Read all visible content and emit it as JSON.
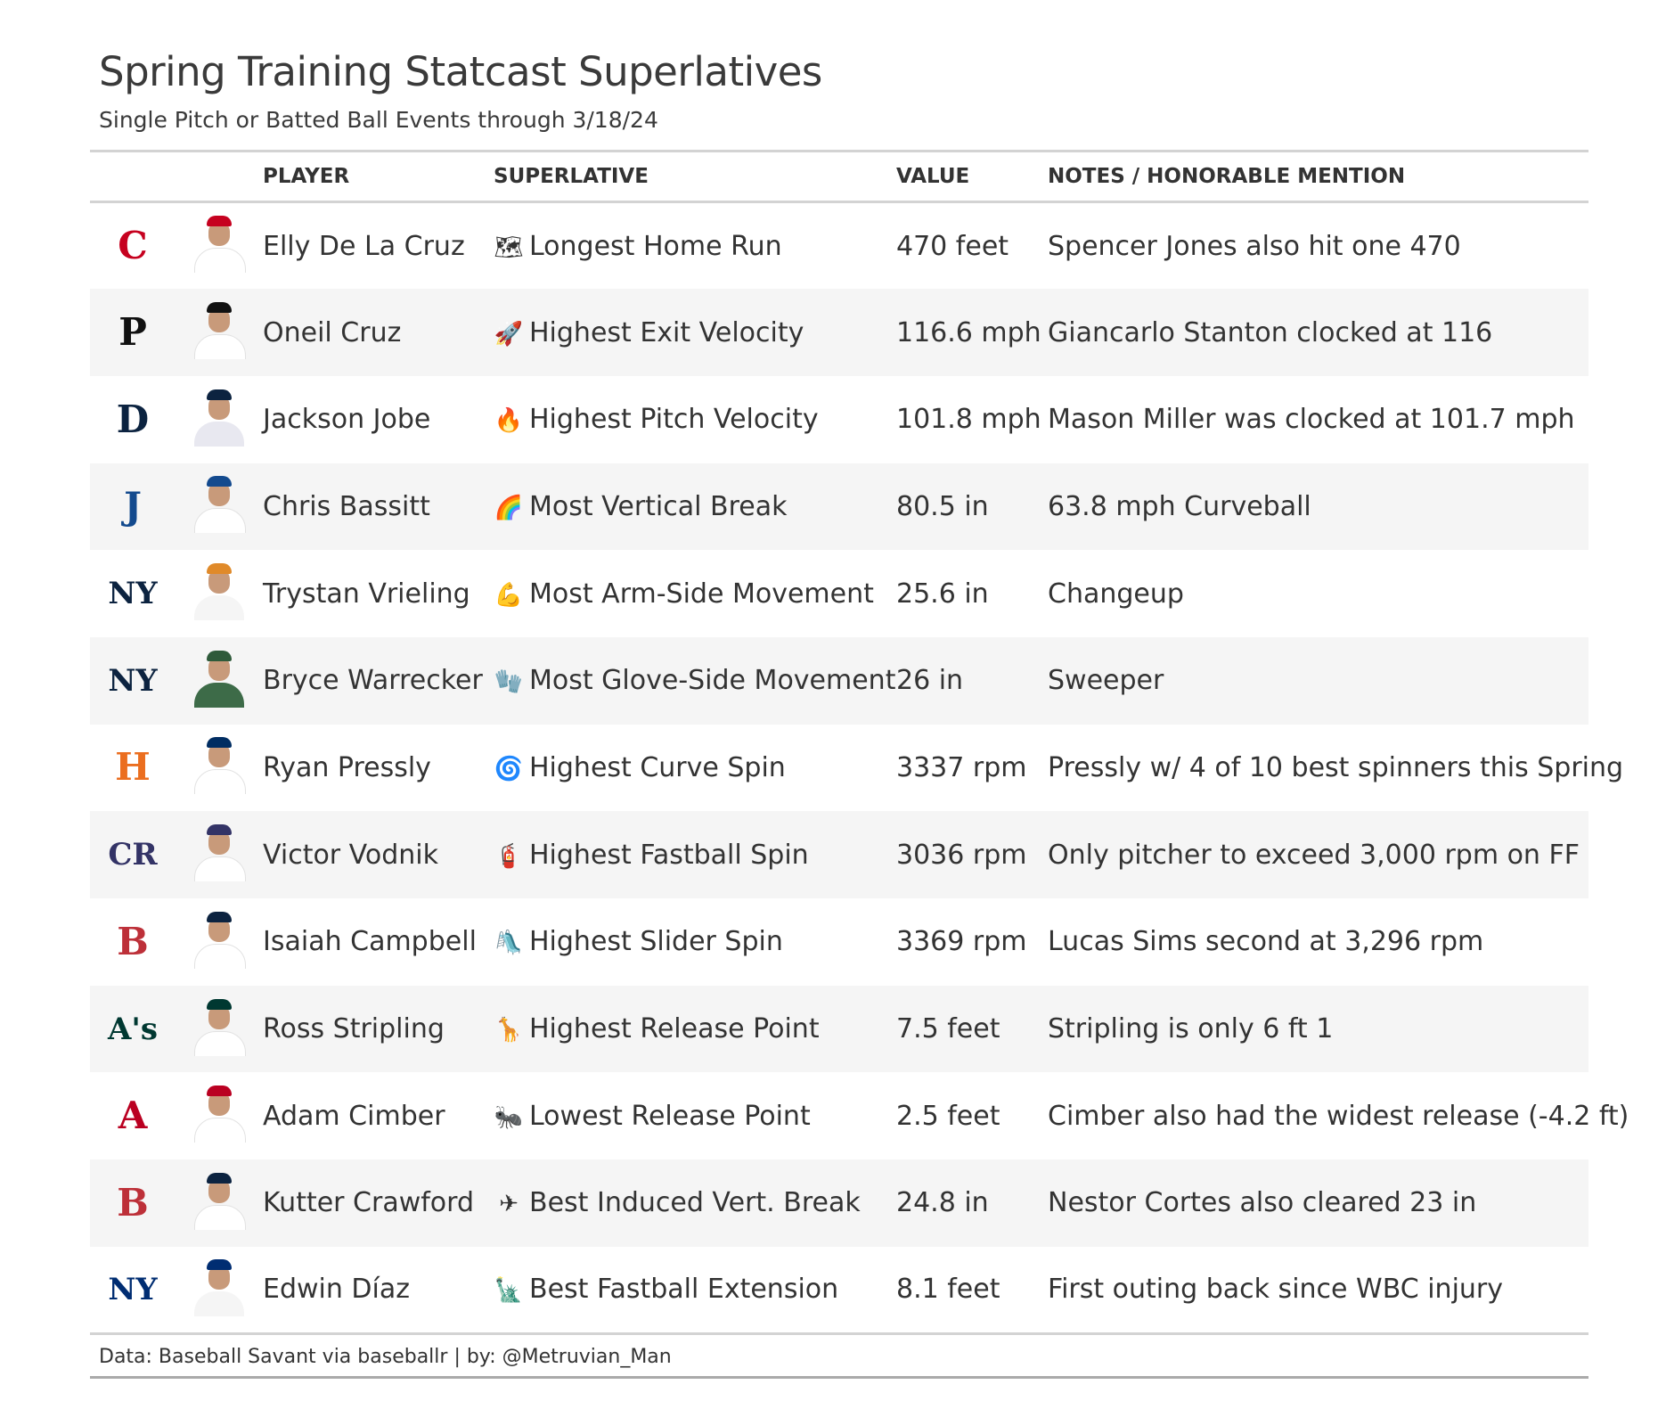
{
  "title": "Spring Training Statcast Superlatives",
  "subtitle": "Single Pitch or Batted Ball Events through 3/18/24",
  "columns": {
    "player": "PLAYER",
    "superlative": "SUPERLATIVE",
    "value": "VALUE",
    "notes": "NOTES / HONORABLE MENTION"
  },
  "rows": [
    {
      "team": "Reds",
      "logo_text": "C",
      "logo_color": "#c6011f",
      "cap_color": "#c6011f",
      "jersey_color": "#ffffff",
      "player": "Elly De La Cruz",
      "icon": "map-icon",
      "icon_glyph": "🗺",
      "superlative": "Longest Home Run",
      "value": "470 feet",
      "notes": "Spencer Jones also hit one 470"
    },
    {
      "team": "Pirates",
      "logo_text": "P",
      "logo_color": "#111111",
      "cap_color": "#111111",
      "jersey_color": "#ffffff",
      "player": "Oneil Cruz",
      "icon": "rocket-icon",
      "icon_glyph": "🚀",
      "superlative": "Highest Exit Velocity",
      "value": "116.6 mph",
      "notes": "Giancarlo Stanton clocked at 116"
    },
    {
      "team": "Tigers",
      "logo_text": "D",
      "logo_color": "#0c2340",
      "cap_color": "#0c2340",
      "jersey_color": "#e8e8f0",
      "player": "Jackson Jobe",
      "icon": "fire-icon",
      "icon_glyph": "🔥",
      "superlative": "Highest Pitch Velocity",
      "value": "101.8 mph",
      "notes": "Mason Miller was clocked at 101.7 mph"
    },
    {
      "team": "Blue Jays",
      "logo_text": "J",
      "logo_color": "#134a8e",
      "cap_color": "#134a8e",
      "jersey_color": "#ffffff",
      "player": "Chris Bassitt",
      "icon": "rainbow-icon",
      "icon_glyph": "🌈",
      "superlative": "Most Vertical Break",
      "value": "80.5 in",
      "notes": "63.8 mph Curveball"
    },
    {
      "team": "Yankees",
      "logo_text": "NY",
      "logo_color": "#0c2340",
      "cap_color": "#e08a2a",
      "jersey_color": "#f5f5f5",
      "player": "Trystan Vrieling",
      "icon": "flexed-bicep-icon",
      "icon_glyph": "💪",
      "superlative": "Most Arm-Side Movement",
      "value": "25.6 in",
      "notes": "Changeup"
    },
    {
      "team": "Yankees",
      "logo_text": "NY",
      "logo_color": "#0c2340",
      "cap_color": "#2e5a3a",
      "jersey_color": "#3d6b48",
      "player": "Bryce Warrecker",
      "icon": "glove-icon",
      "icon_glyph": "🧤",
      "superlative": "Most Glove-Side Movement",
      "value": "26 in",
      "notes": "Sweeper"
    },
    {
      "team": "Astros",
      "logo_text": "H",
      "logo_color": "#eb6e1f",
      "cap_color": "#002d62",
      "jersey_color": "#ffffff",
      "player": "Ryan Pressly",
      "icon": "cyclone-icon",
      "icon_glyph": "🌀",
      "superlative": "Highest Curve Spin",
      "value": "3337 rpm",
      "notes": "Pressly w/ 4 of 10 best spinners this Spring"
    },
    {
      "team": "Rockies",
      "logo_text": "CR",
      "logo_color": "#333366",
      "cap_color": "#333366",
      "jersey_color": "#ffffff",
      "player": "Victor Vodnik",
      "icon": "fire-extinguisher-icon",
      "icon_glyph": "🧯",
      "superlative": "Highest Fastball Spin",
      "value": "3036 rpm",
      "notes": "Only pitcher to exceed 3,000 rpm on FF"
    },
    {
      "team": "Red Sox",
      "logo_text": "B",
      "logo_color": "#bd3039",
      "cap_color": "#0c2340",
      "jersey_color": "#ffffff",
      "player": "Isaiah Campbell",
      "icon": "slide-icon",
      "icon_glyph": "🛝",
      "superlative": "Highest Slider Spin",
      "value": "3369 rpm",
      "notes": "Lucas Sims second at 3,296 rpm"
    },
    {
      "team": "Athletics",
      "logo_text": "A's",
      "logo_color": "#003831",
      "cap_color": "#003831",
      "jersey_color": "#ffffff",
      "player": "Ross Stripling",
      "icon": "giraffe-icon",
      "icon_glyph": "🦒",
      "superlative": "Highest Release Point",
      "value": "7.5 feet",
      "notes": "Stripling is only 6 ft 1"
    },
    {
      "team": "Angels",
      "logo_text": "A",
      "logo_color": "#ba0021",
      "cap_color": "#ba0021",
      "jersey_color": "#ffffff",
      "player": "Adam Cimber",
      "icon": "ant-icon",
      "icon_glyph": "🐜",
      "superlative": "Lowest Release Point",
      "value": "2.5 feet",
      "notes": "Cimber also had the widest release (-4.2 ft)"
    },
    {
      "team": "Red Sox",
      "logo_text": "B",
      "logo_color": "#bd3039",
      "cap_color": "#0c2340",
      "jersey_color": "#ffffff",
      "player": "Kutter Crawford",
      "icon": "airplane-icon",
      "icon_glyph": "✈",
      "superlative": "Best Induced Vert. Break",
      "value": "24.8 in",
      "notes": "Nestor Cortes also cleared 23 in"
    },
    {
      "team": "Mets",
      "logo_text": "NY",
      "logo_color": "#002d72",
      "cap_color": "#002d72",
      "jersey_color": "#f5f5f5",
      "player": "Edwin Díaz",
      "icon": "statue-of-liberty-icon",
      "icon_glyph": "🗽",
      "superlative": "Best Fastball Extension",
      "value": "8.1 feet",
      "notes": "First outing back since WBC injury"
    }
  ],
  "footer": "Data: Baseball Savant via baseballr | by: @Metruvian_Man"
}
